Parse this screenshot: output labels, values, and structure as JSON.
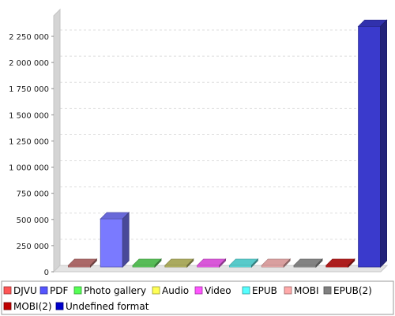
{
  "chart_data": {
    "type": "bar",
    "title": "",
    "xlabel": "",
    "ylabel": "",
    "ylim": [
      0,
      2250000
    ],
    "y_ticks": [
      0,
      250000,
      500000,
      750000,
      1000000,
      1250000,
      1500000,
      1750000,
      2000000,
      2250000
    ],
    "y_tick_labels": [
      "0",
      "250 000",
      "500 000",
      "750 000",
      "1 000 000",
      "1 250 000",
      "1 500 000",
      "1 750 000",
      "2 000 000",
      "2 250 000"
    ],
    "grid": true,
    "three_d": true,
    "legend_position": "bottom",
    "categories": [
      "DJVU",
      "PDF",
      "Photo gallery",
      "Audio",
      "Video",
      "EPUB",
      "MOBI",
      "EPUB(2)",
      "MOBI(2)",
      "Undefined format"
    ],
    "values": [
      0,
      460000,
      0,
      0,
      0,
      0,
      0,
      0,
      0,
      2300000
    ],
    "colors": [
      "#ff5555",
      "#5555ff",
      "#55ff55",
      "#ffff55",
      "#ff55ff",
      "#55ffff",
      "#ffaaaa",
      "#808080",
      "#c00000",
      "#0000cc"
    ],
    "bar_colors": [
      "#c97a7a",
      "#7a7aff",
      "#66dd66",
      "#c8c86e",
      "#ff66ff",
      "#66eeee",
      "#ffbbbb",
      "#999999",
      "#cc2222",
      "#3a3acc"
    ]
  }
}
